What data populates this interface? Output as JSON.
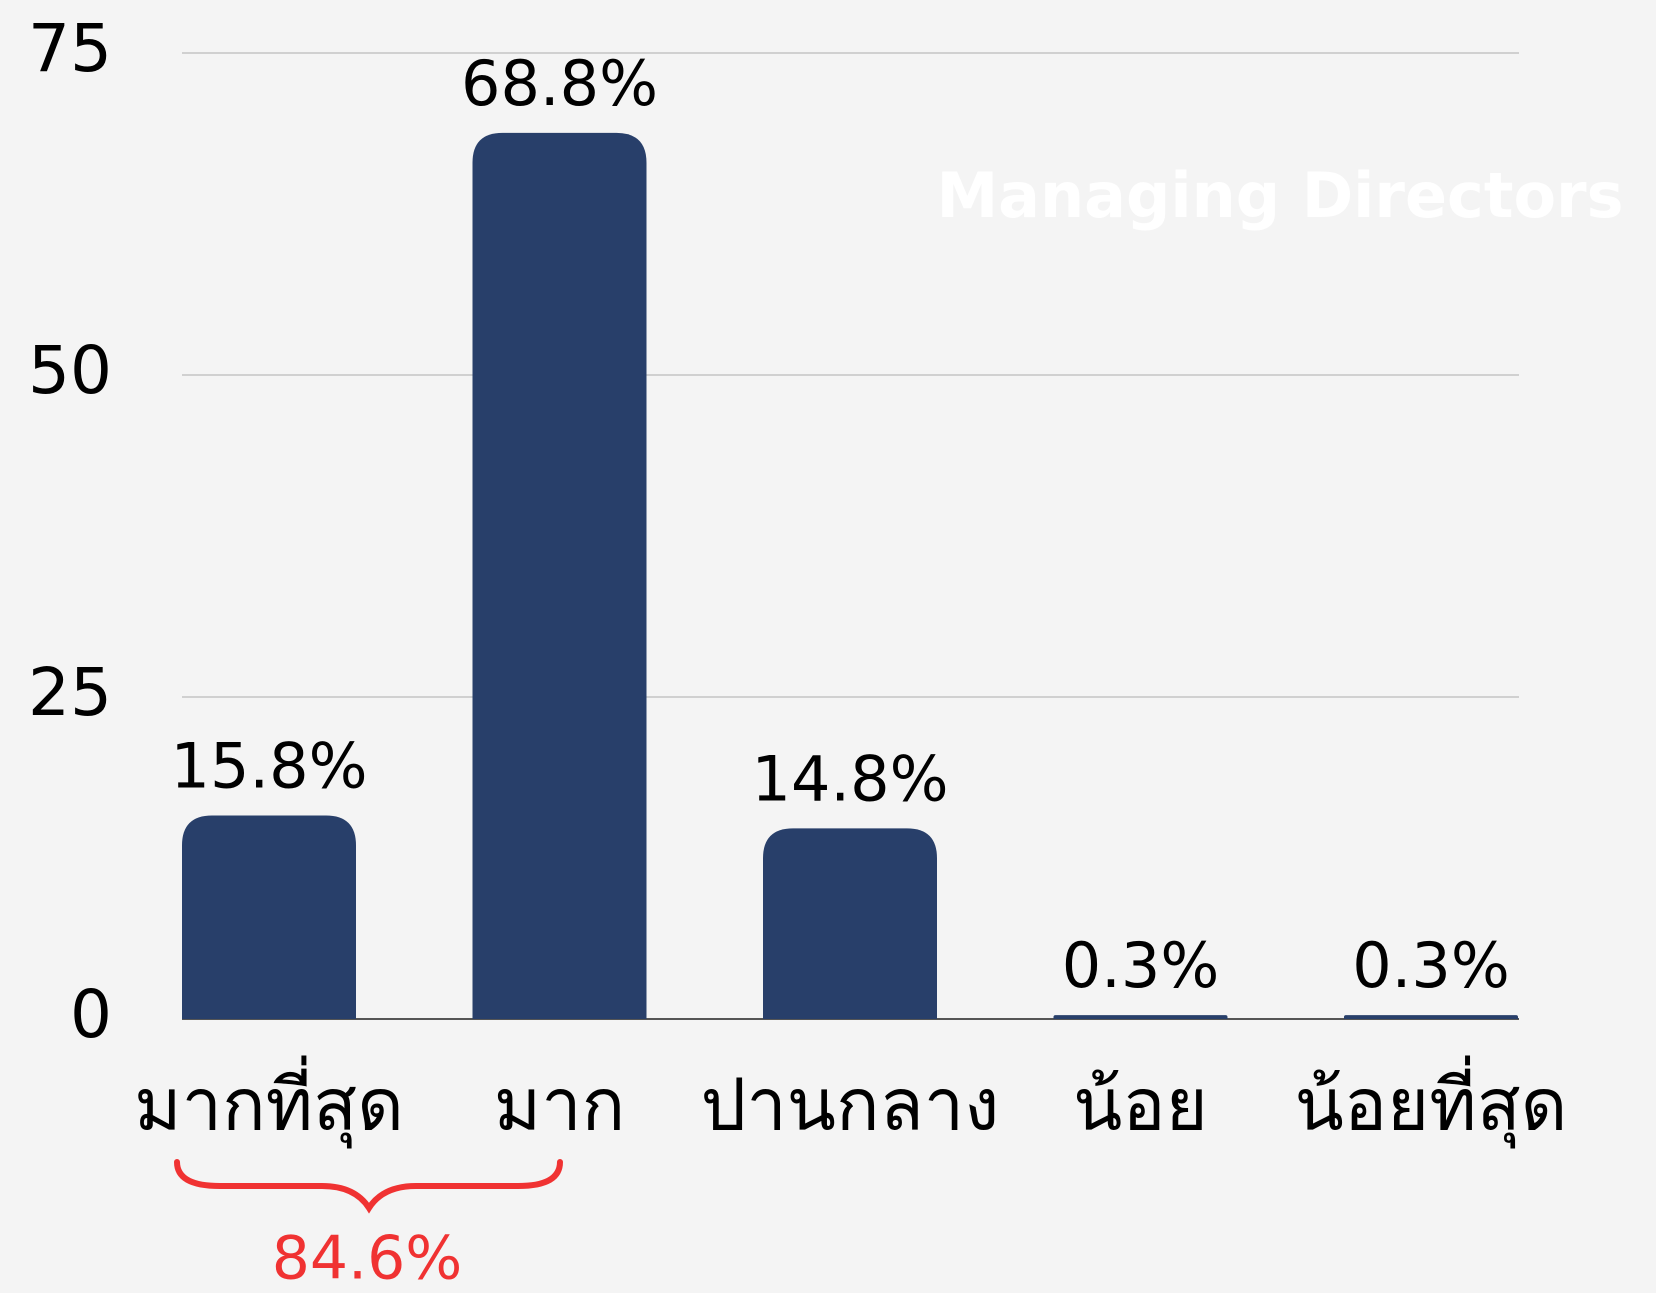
{
  "chart_data": {
    "type": "bar",
    "categories": [
      "มากที่สุด",
      "มาก",
      "ปานกลาง",
      "น้อย",
      "น้อยที่สุด"
    ],
    "values": [
      15.8,
      68.8,
      14.8,
      0.3,
      0.3
    ],
    "value_labels": [
      "15.8%",
      "68.8%",
      "14.8%",
      "0.3%",
      "0.3%"
    ],
    "color": "#283f6a",
    "ylim": [
      0,
      75
    ],
    "yticks": [
      0,
      25,
      50,
      75
    ],
    "grid": true,
    "annotation": "84.6%",
    "watermark": "Managing Directors"
  }
}
